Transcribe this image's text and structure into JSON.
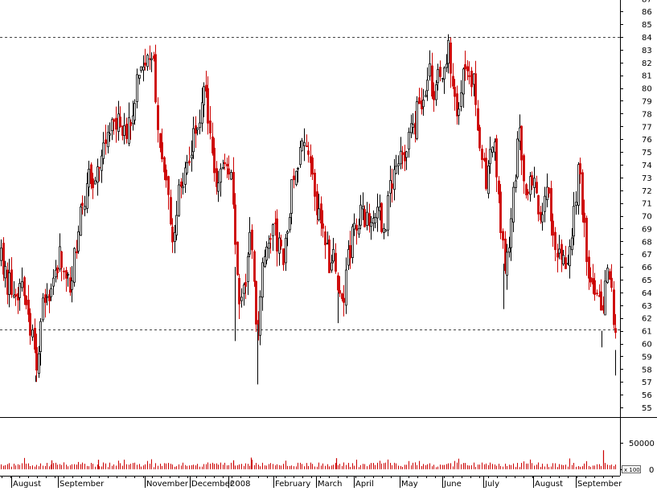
{
  "chart_data": {
    "type": "candlestick",
    "price_axis": {
      "ylim": [
        54,
        88
      ],
      "ticks": [
        55,
        56,
        57,
        58,
        59,
        60,
        61,
        62,
        63,
        64,
        65,
        66,
        67,
        68,
        69,
        70,
        71,
        72,
        73,
        74,
        75,
        76,
        77,
        78,
        79,
        80,
        81,
        82,
        83,
        84,
        85,
        86,
        87
      ],
      "reference_lines": [
        84.0,
        61.1
      ]
    },
    "volume_axis": {
      "ylim": [
        0,
        70000
      ],
      "tick_labels": [
        "50000",
        "0"
      ],
      "tick_values": [
        50000,
        0
      ],
      "scale_label": "x 100"
    },
    "x_axis": {
      "months": [
        "August",
        "September",
        "November",
        "December",
        "2008",
        "February",
        "March",
        "April",
        "May",
        "June",
        "July",
        "August",
        "September"
      ]
    },
    "colors": {
      "up": "#000000",
      "down": "#cc0000",
      "grid": "#444444",
      "volume": "#cc0000"
    },
    "price_path": [
      [
        0,
        66.5
      ],
      [
        8,
        64.8
      ],
      [
        16,
        63.9
      ],
      [
        24,
        64.5
      ],
      [
        30,
        63.2
      ],
      [
        36,
        61.5
      ],
      [
        40,
        59.5
      ],
      [
        44,
        57.5
      ],
      [
        48,
        60.5
      ],
      [
        52,
        63.0
      ],
      [
        58,
        64.0
      ],
      [
        64,
        65.3
      ],
      [
        70,
        66.5
      ],
      [
        76,
        66.8
      ],
      [
        82,
        65.0
      ],
      [
        86,
        64.6
      ],
      [
        92,
        67.5
      ],
      [
        98,
        70.0
      ],
      [
        104,
        71.8
      ],
      [
        110,
        72.9
      ],
      [
        116,
        73.2
      ],
      [
        122,
        74.5
      ],
      [
        130,
        75.8
      ],
      [
        136,
        76.8
      ],
      [
        142,
        77.5
      ],
      [
        148,
        77.2
      ],
      [
        154,
        76.9
      ],
      [
        160,
        77.6
      ],
      [
        166,
        79.5
      ],
      [
        172,
        82.0
      ],
      [
        178,
        82.6
      ],
      [
        184,
        81.5
      ],
      [
        190,
        82.1
      ],
      [
        194,
        77.0
      ],
      [
        198,
        75.0
      ],
      [
        202,
        74.0
      ],
      [
        206,
        71.8
      ],
      [
        210,
        69.5
      ],
      [
        214,
        67.0
      ],
      [
        218,
        70.0
      ],
      [
        222,
        72.5
      ],
      [
        228,
        73.5
      ],
      [
        234,
        75.0
      ],
      [
        240,
        76.0
      ],
      [
        246,
        77.5
      ],
      [
        252,
        80.2
      ],
      [
        258,
        77.0
      ],
      [
        264,
        74.5
      ],
      [
        270,
        72.0
      ],
      [
        276,
        73.5
      ],
      [
        282,
        73.8
      ],
      [
        288,
        72.0
      ],
      [
        292,
        66.0
      ],
      [
        296,
        63.0
      ],
      [
        300,
        64.0
      ],
      [
        306,
        66.0
      ],
      [
        310,
        68.0
      ],
      [
        314,
        67.0
      ],
      [
        318,
        60.0
      ],
      [
        322,
        63.0
      ],
      [
        326,
        67.0
      ],
      [
        332,
        68.5
      ],
      [
        338,
        69.0
      ],
      [
        344,
        68.0
      ],
      [
        350,
        66.5
      ],
      [
        356,
        69.5
      ],
      [
        362,
        72.5
      ],
      [
        368,
        73.0
      ],
      [
        374,
        75.0
      ],
      [
        380,
        76.5
      ],
      [
        386,
        74.0
      ],
      [
        392,
        71.0
      ],
      [
        398,
        70.0
      ],
      [
        404,
        68.0
      ],
      [
        408,
        66.5
      ],
      [
        412,
        67.5
      ],
      [
        416,
        66.0
      ],
      [
        420,
        64.0
      ],
      [
        424,
        63.0
      ],
      [
        430,
        66.0
      ],
      [
        436,
        68.0
      ],
      [
        442,
        69.0
      ],
      [
        448,
        70.0
      ],
      [
        454,
        69.5
      ],
      [
        460,
        70.5
      ],
      [
        466,
        71.0
      ],
      [
        472,
        70.0
      ],
      [
        478,
        69.0
      ],
      [
        484,
        72.0
      ],
      [
        490,
        74.0
      ],
      [
        496,
        75.0
      ],
      [
        502,
        74.0
      ],
      [
        508,
        76.0
      ],
      [
        514,
        77.0
      ],
      [
        520,
        78.5
      ],
      [
        526,
        80.0
      ],
      [
        532,
        81.0
      ],
      [
        538,
        80.0
      ],
      [
        544,
        80.5
      ],
      [
        550,
        81.5
      ],
      [
        556,
        83.5
      ],
      [
        560,
        81.0
      ],
      [
        564,
        79.5
      ],
      [
        568,
        77.5
      ],
      [
        572,
        79.5
      ],
      [
        576,
        81.0
      ],
      [
        580,
        82.5
      ],
      [
        584,
        81.5
      ],
      [
        588,
        80.0
      ],
      [
        592,
        77.0
      ],
      [
        596,
        75.5
      ],
      [
        600,
        74.0
      ],
      [
        604,
        72.0
      ],
      [
        608,
        74.5
      ],
      [
        612,
        76.0
      ],
      [
        616,
        73.0
      ],
      [
        620,
        70.5
      ],
      [
        624,
        67.0
      ],
      [
        628,
        65.5
      ],
      [
        634,
        70.0
      ],
      [
        640,
        74.0
      ],
      [
        646,
        76.5
      ],
      [
        650,
        73.0
      ],
      [
        656,
        72.0
      ],
      [
        660,
        73.0
      ],
      [
        666,
        71.0
      ],
      [
        672,
        70.0
      ],
      [
        678,
        72.0
      ],
      [
        684,
        70.5
      ],
      [
        690,
        68.0
      ],
      [
        696,
        66.0
      ],
      [
        702,
        66.5
      ],
      [
        708,
        68.5
      ],
      [
        714,
        71.0
      ],
      [
        718,
        73.5
      ],
      [
        722,
        71.5
      ],
      [
        726,
        68.5
      ],
      [
        730,
        66.0
      ],
      [
        734,
        64.0
      ],
      [
        738,
        63.5
      ],
      [
        744,
        63.0
      ],
      [
        748,
        61.0
      ],
      [
        752,
        64.5
      ],
      [
        756,
        66.0
      ],
      [
        760,
        64.5
      ],
      [
        764,
        60.0
      ],
      [
        766,
        59.0
      ]
    ],
    "volume_spikes": [
      [
        750,
        36000
      ],
      [
        418,
        21000
      ],
      [
        312,
        22000
      ],
      [
        290,
        17000
      ],
      [
        122,
        18000
      ],
      [
        64,
        17000
      ]
    ]
  }
}
